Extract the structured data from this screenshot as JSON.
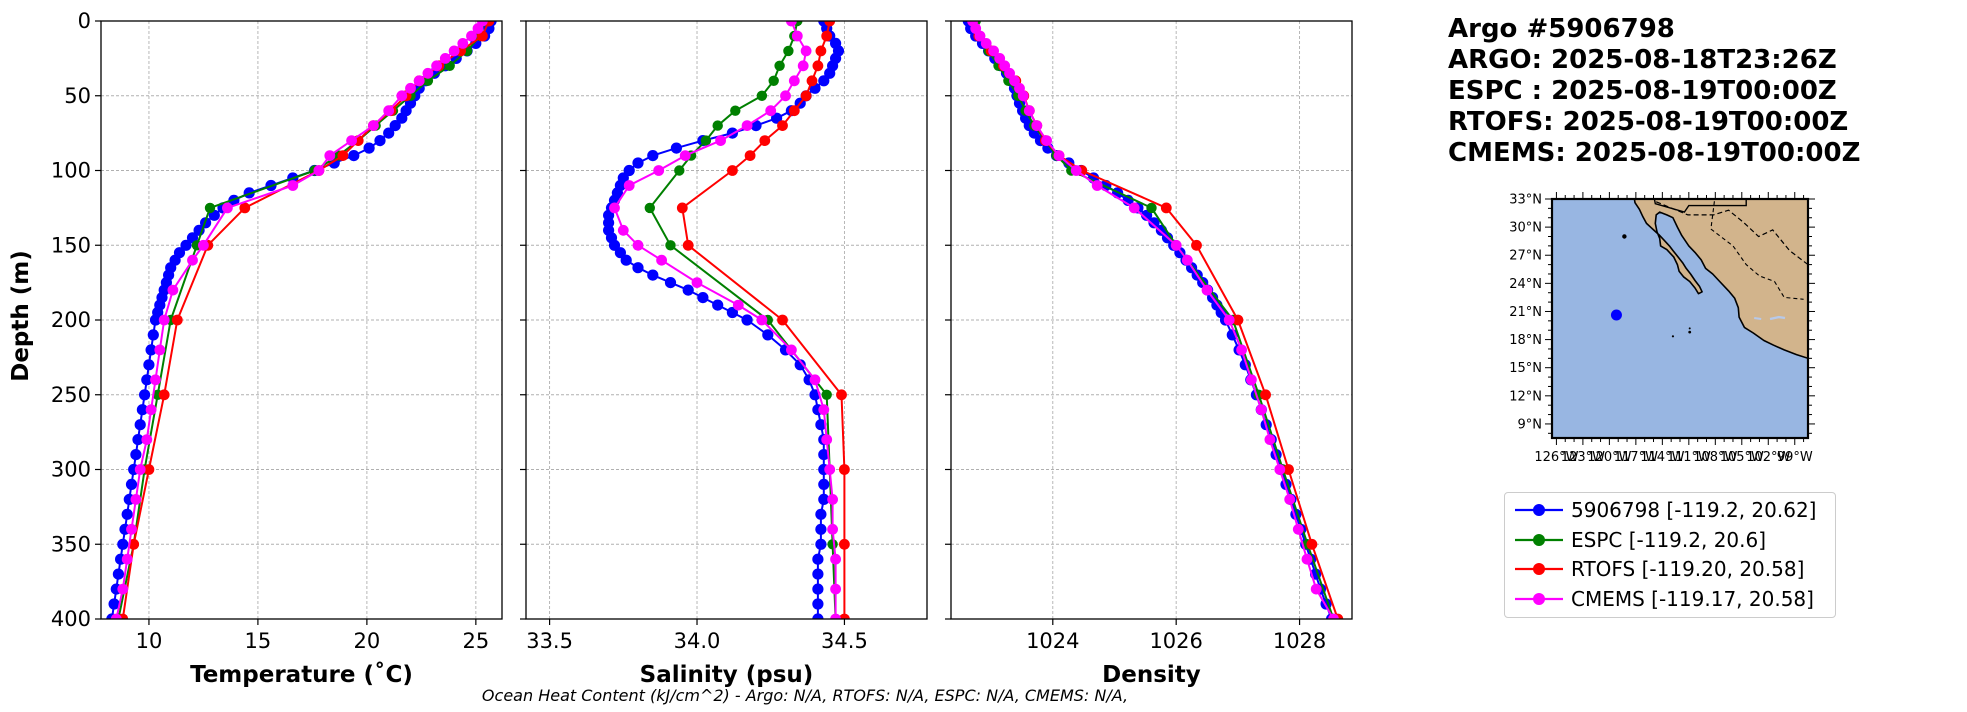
{
  "header": {
    "lines": [
      "Argo #5906798",
      "ARGO: 2025-08-18T23:26Z",
      "ESPC : 2025-08-19T00:00Z",
      "RTOFS: 2025-08-19T00:00Z",
      "CMEMS: 2025-08-19T00:00Z"
    ]
  },
  "footer": {
    "text": "Ocean Heat Content (kJ/cm^2) - Argo: N/A,  RTOFS: N/A,  ESPC: N/A,  CMEMS: N/A,"
  },
  "colors": {
    "argo": "#0000ff",
    "espc": "#008000",
    "rtofs": "#ff0000",
    "cmems": "#ff00ff",
    "ocean": "#98b6e2",
    "land": "#d2b48c",
    "grid": "#b0b0b0"
  },
  "legend": {
    "items": [
      {
        "key": "argo",
        "label": "5906798 [-119.2, 20.62]"
      },
      {
        "key": "espc",
        "label": "ESPC [-119.2, 20.6]"
      },
      {
        "key": "rtofs",
        "label": "RTOFS [-119.20, 20.58]"
      },
      {
        "key": "cmems",
        "label": "CMEMS [-119.17, 20.58]"
      }
    ]
  },
  "map": {
    "lat_labels": [
      "33°N",
      "30°N",
      "27°N",
      "24°N",
      "21°N",
      "18°N",
      "15°N",
      "12°N",
      "9°N"
    ],
    "lon_labels": [
      "126°W",
      "123°W",
      "120°W",
      "117°W",
      "114°W",
      "111°W",
      "108°W",
      "105°W",
      "102°W",
      "99°W"
    ],
    "lon_range": [
      -126.5,
      -97.5
    ],
    "lat_range": [
      7.5,
      33.0
    ],
    "float_position": {
      "lon": -119.2,
      "lat": 20.62
    }
  },
  "chart_data": [
    {
      "type": "line",
      "title": "",
      "xlabel": "Temperature (˚C)",
      "ylabel": "Depth (m)",
      "xlim": [
        7.8,
        26.2
      ],
      "ylim": [
        400,
        0
      ],
      "xticks": [
        10,
        15,
        20,
        25
      ],
      "yticks": [
        0,
        50,
        100,
        150,
        200,
        250,
        300,
        350,
        400
      ],
      "grid": true,
      "series": [
        {
          "name": "Argo",
          "key": "argo",
          "depth": [
            0,
            5,
            10,
            15,
            20,
            25,
            30,
            35,
            40,
            45,
            50,
            55,
            60,
            65,
            70,
            75,
            80,
            85,
            90,
            95,
            100,
            105,
            110,
            115,
            120,
            125,
            130,
            135,
            140,
            145,
            150,
            155,
            160,
            165,
            170,
            175,
            180,
            185,
            190,
            195,
            200,
            210,
            220,
            230,
            240,
            250,
            260,
            270,
            280,
            290,
            300,
            310,
            320,
            330,
            340,
            350,
            360,
            370,
            380,
            390,
            400
          ],
          "values": [
            25.7,
            25.6,
            25.4,
            25.0,
            24.6,
            24.1,
            23.6,
            23.1,
            22.7,
            22.4,
            22.2,
            22.0,
            21.8,
            21.6,
            21.3,
            21.0,
            20.6,
            20.1,
            19.4,
            18.5,
            17.6,
            16.6,
            15.6,
            14.6,
            13.9,
            13.4,
            13.0,
            12.6,
            12.3,
            12.0,
            11.7,
            11.4,
            11.2,
            11.0,
            10.9,
            10.8,
            10.7,
            10.6,
            10.5,
            10.4,
            10.3,
            10.2,
            10.1,
            10.0,
            9.9,
            9.8,
            9.7,
            9.6,
            9.5,
            9.4,
            9.3,
            9.2,
            9.1,
            9.0,
            8.9,
            8.8,
            8.7,
            8.6,
            8.5,
            8.4,
            8.3
          ]
        },
        {
          "name": "ESPC",
          "key": "espc",
          "depth": [
            0,
            10,
            20,
            30,
            40,
            50,
            60,
            70,
            80,
            90,
            100,
            125,
            150,
            200,
            250,
            300,
            350,
            400
          ],
          "values": [
            25.4,
            25.2,
            24.6,
            23.8,
            22.8,
            22.0,
            21.2,
            20.4,
            19.6,
            18.7,
            17.6,
            12.8,
            12.2,
            11.0,
            10.4,
            9.8,
            9.3,
            8.6
          ]
        },
        {
          "name": "RTOFS",
          "key": "rtofs",
          "depth": [
            0,
            10,
            20,
            30,
            40,
            50,
            60,
            70,
            80,
            90,
            100,
            125,
            150,
            200,
            250,
            300,
            350,
            400
          ],
          "values": [
            25.6,
            25.3,
            24.3,
            23.3,
            22.4,
            21.8,
            21.1,
            20.3,
            19.6,
            18.9,
            17.8,
            14.4,
            12.7,
            11.3,
            10.7,
            10.0,
            9.3,
            8.8
          ]
        },
        {
          "name": "CMEMS",
          "key": "cmems",
          "depth": [
            0,
            5,
            10,
            15,
            20,
            25,
            30,
            35,
            40,
            45,
            50,
            60,
            70,
            80,
            90,
            100,
            110,
            125,
            150,
            160,
            180,
            200,
            220,
            240,
            260,
            280,
            300,
            320,
            340,
            360,
            380,
            400
          ],
          "values": [
            25.3,
            25.1,
            24.8,
            24.4,
            24.0,
            23.6,
            23.2,
            22.8,
            22.4,
            22.0,
            21.6,
            21.0,
            20.3,
            19.3,
            18.3,
            17.8,
            16.6,
            13.6,
            12.5,
            12.0,
            11.1,
            10.7,
            10.5,
            10.3,
            10.1,
            9.9,
            9.6,
            9.4,
            9.2,
            9.0,
            8.8,
            8.5
          ]
        }
      ]
    },
    {
      "type": "line",
      "title": "",
      "xlabel": "Salinity (psu)",
      "ylabel": "",
      "xlim": [
        33.42,
        34.78
      ],
      "ylim": [
        400,
        0
      ],
      "xticks": [
        33.5,
        34.0,
        34.5
      ],
      "xtick_labels": [
        "33.5",
        "34.0",
        "34.5"
      ],
      "grid": true,
      "series": [
        {
          "name": "Argo",
          "key": "argo",
          "depth": [
            0,
            5,
            10,
            15,
            20,
            25,
            30,
            35,
            40,
            45,
            50,
            55,
            60,
            65,
            70,
            75,
            80,
            85,
            90,
            95,
            100,
            105,
            110,
            115,
            120,
            125,
            130,
            135,
            140,
            145,
            150,
            155,
            160,
            165,
            170,
            175,
            180,
            185,
            190,
            195,
            200,
            210,
            220,
            230,
            240,
            250,
            260,
            270,
            280,
            290,
            300,
            310,
            320,
            330,
            340,
            350,
            360,
            370,
            380,
            390,
            400
          ],
          "values": [
            34.43,
            34.44,
            34.45,
            34.47,
            34.48,
            34.47,
            34.46,
            34.45,
            34.43,
            34.4,
            34.37,
            34.35,
            34.32,
            34.27,
            34.2,
            34.12,
            34.02,
            33.93,
            33.85,
            33.8,
            33.77,
            33.75,
            33.74,
            33.73,
            33.72,
            33.71,
            33.7,
            33.7,
            33.7,
            33.71,
            33.72,
            33.74,
            33.76,
            33.8,
            33.85,
            33.91,
            33.97,
            34.02,
            34.07,
            34.12,
            34.17,
            34.24,
            34.3,
            34.35,
            34.38,
            34.4,
            34.41,
            34.42,
            34.43,
            34.43,
            34.43,
            34.43,
            34.43,
            34.42,
            34.42,
            34.42,
            34.41,
            34.41,
            34.41,
            34.41,
            34.41
          ]
        },
        {
          "name": "ESPC",
          "key": "espc",
          "depth": [
            0,
            10,
            20,
            30,
            40,
            50,
            60,
            70,
            80,
            90,
            100,
            125,
            150,
            200,
            250,
            300,
            350,
            400
          ],
          "values": [
            34.34,
            34.33,
            34.31,
            34.28,
            34.26,
            34.22,
            34.13,
            34.07,
            34.03,
            33.98,
            33.94,
            33.84,
            33.91,
            34.24,
            34.44,
            34.45,
            34.46,
            34.47
          ]
        },
        {
          "name": "RTOFS",
          "key": "rtofs",
          "depth": [
            0,
            10,
            20,
            30,
            40,
            50,
            60,
            70,
            80,
            90,
            100,
            125,
            150,
            200,
            250,
            300,
            350,
            400
          ],
          "values": [
            34.45,
            34.44,
            34.42,
            34.41,
            34.39,
            34.37,
            34.33,
            34.29,
            34.23,
            34.18,
            34.12,
            33.95,
            33.97,
            34.29,
            34.49,
            34.5,
            34.5,
            34.5
          ]
        },
        {
          "name": "CMEMS",
          "key": "cmems",
          "depth": [
            0,
            10,
            20,
            30,
            40,
            50,
            60,
            70,
            80,
            90,
            100,
            110,
            125,
            140,
            150,
            160,
            175,
            190,
            200,
            220,
            240,
            260,
            280,
            300,
            320,
            340,
            360,
            380,
            400
          ],
          "values": [
            34.32,
            34.34,
            34.37,
            34.36,
            34.33,
            34.3,
            34.25,
            34.17,
            34.08,
            33.96,
            33.87,
            33.77,
            33.72,
            33.75,
            33.8,
            33.88,
            34.0,
            34.14,
            34.22,
            34.32,
            34.4,
            34.43,
            34.44,
            34.45,
            34.46,
            34.46,
            34.47,
            34.47,
            34.47
          ]
        }
      ]
    },
    {
      "type": "line",
      "title": "",
      "xlabel": "Density",
      "ylabel": "",
      "xlim": [
        1022.35,
        1028.85
      ],
      "ylim": [
        400,
        0
      ],
      "xticks": [
        1024,
        1026,
        1028
      ],
      "grid": true,
      "series": [
        {
          "name": "Argo",
          "key": "argo",
          "depth": [
            0,
            5,
            10,
            15,
            20,
            25,
            30,
            35,
            40,
            45,
            50,
            55,
            60,
            65,
            70,
            75,
            80,
            85,
            90,
            95,
            100,
            105,
            110,
            115,
            120,
            125,
            130,
            135,
            140,
            145,
            150,
            155,
            160,
            165,
            170,
            175,
            180,
            185,
            190,
            195,
            200,
            210,
            220,
            230,
            240,
            250,
            260,
            270,
            280,
            290,
            300,
            310,
            320,
            330,
            340,
            350,
            360,
            370,
            380,
            390,
            400
          ],
          "values": [
            1022.63,
            1022.67,
            1022.75,
            1022.86,
            1022.96,
            1023.06,
            1023.16,
            1023.25,
            1023.32,
            1023.38,
            1023.42,
            1023.46,
            1023.51,
            1023.56,
            1023.62,
            1023.7,
            1023.8,
            1023.92,
            1024.06,
            1024.26,
            1024.46,
            1024.66,
            1024.86,
            1025.05,
            1025.22,
            1025.38,
            1025.52,
            1025.64,
            1025.76,
            1025.86,
            1025.96,
            1026.06,
            1026.16,
            1026.25,
            1026.34,
            1026.43,
            1026.51,
            1026.59,
            1026.66,
            1026.73,
            1026.8,
            1026.91,
            1027.02,
            1027.12,
            1027.21,
            1027.3,
            1027.38,
            1027.46,
            1027.54,
            1027.62,
            1027.7,
            1027.78,
            1027.86,
            1027.94,
            1028.02,
            1028.1,
            1028.18,
            1028.26,
            1028.34,
            1028.43,
            1028.52
          ]
        },
        {
          "name": "ESPC",
          "key": "espc",
          "depth": [
            0,
            10,
            20,
            30,
            40,
            50,
            60,
            70,
            80,
            90,
            100,
            125,
            150,
            200,
            250,
            300,
            350,
            400
          ],
          "values": [
            1022.75,
            1022.82,
            1022.96,
            1023.12,
            1023.28,
            1023.44,
            1023.56,
            1023.7,
            1023.88,
            1024.06,
            1024.3,
            1025.6,
            1026.0,
            1026.92,
            1027.34,
            1027.73,
            1028.13,
            1028.55
          ]
        },
        {
          "name": "RTOFS",
          "key": "rtofs",
          "depth": [
            0,
            10,
            20,
            30,
            40,
            50,
            60,
            70,
            80,
            90,
            100,
            125,
            150,
            200,
            250,
            300,
            350,
            400
          ],
          "values": [
            1022.7,
            1022.8,
            1023.0,
            1023.2,
            1023.4,
            1023.53,
            1023.62,
            1023.74,
            1023.88,
            1024.1,
            1024.47,
            1025.84,
            1026.33,
            1027.0,
            1027.45,
            1027.82,
            1028.2,
            1028.62
          ]
        },
        {
          "name": "CMEMS",
          "key": "cmems",
          "depth": [
            0,
            5,
            10,
            15,
            20,
            25,
            30,
            35,
            40,
            45,
            50,
            60,
            70,
            80,
            90,
            100,
            110,
            125,
            150,
            160,
            180,
            200,
            220,
            240,
            260,
            280,
            300,
            320,
            340,
            360,
            380,
            400
          ],
          "values": [
            1022.7,
            1022.75,
            1022.82,
            1022.92,
            1023.04,
            1023.14,
            1023.22,
            1023.3,
            1023.38,
            1023.46,
            1023.52,
            1023.62,
            1023.74,
            1023.9,
            1024.1,
            1024.38,
            1024.72,
            1025.32,
            1026.0,
            1026.18,
            1026.5,
            1026.86,
            1027.06,
            1027.22,
            1027.38,
            1027.52,
            1027.68,
            1027.84,
            1027.98,
            1028.12,
            1028.27,
            1028.55
          ]
        }
      ]
    }
  ]
}
